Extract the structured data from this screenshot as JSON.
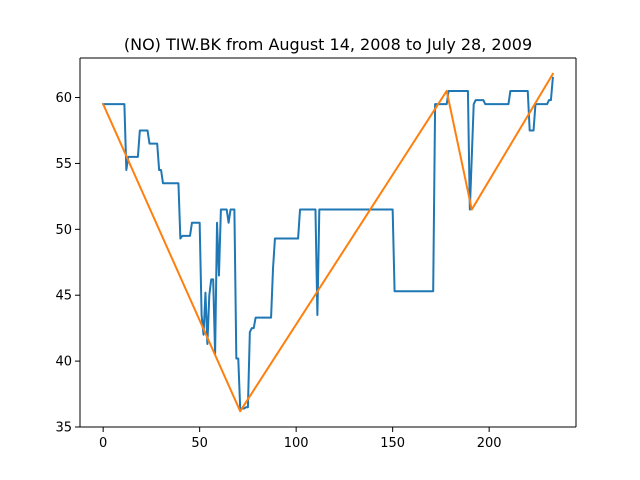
{
  "chart_data": {
    "type": "line",
    "title": "(NO) TIW.BK from August 14, 2008 to July 28, 2009",
    "xlabel": "",
    "ylabel": "",
    "xlim": [
      -12,
      245
    ],
    "ylim": [
      35,
      63
    ],
    "x_ticks": [
      0,
      50,
      100,
      150,
      200
    ],
    "y_ticks": [
      35,
      40,
      45,
      50,
      55,
      60
    ],
    "grid": false,
    "legend": "none",
    "series": [
      {
        "color": "#1f77b4",
        "points": [
          [
            0,
            59.5
          ],
          [
            11,
            59.5
          ],
          [
            12,
            54.5
          ],
          [
            13,
            55.5
          ],
          [
            18,
            55.5
          ],
          [
            19,
            57.5
          ],
          [
            23,
            57.5
          ],
          [
            24,
            56.5
          ],
          [
            28,
            56.5
          ],
          [
            29,
            54.5
          ],
          [
            30,
            54.5
          ],
          [
            31,
            53.5
          ],
          [
            39,
            53.5
          ],
          [
            40,
            49.3
          ],
          [
            41,
            49.5
          ],
          [
            45,
            49.5
          ],
          [
            46,
            50.5
          ],
          [
            50,
            50.5
          ],
          [
            51,
            43.5
          ],
          [
            52,
            42.0
          ],
          [
            53,
            45.2
          ],
          [
            54,
            41.3
          ],
          [
            55,
            45.0
          ],
          [
            56,
            46.2
          ],
          [
            57,
            46.2
          ],
          [
            58,
            40.5
          ],
          [
            59,
            50.5
          ],
          [
            60,
            46.5
          ],
          [
            61,
            51.5
          ],
          [
            64,
            51.5
          ],
          [
            65,
            50.5
          ],
          [
            66,
            51.5
          ],
          [
            68,
            51.5
          ],
          [
            69,
            40.2
          ],
          [
            70,
            40.2
          ],
          [
            71,
            36.4
          ],
          [
            73,
            36.4
          ],
          [
            74,
            36.5
          ],
          [
            75,
            36.5
          ],
          [
            76,
            42.2
          ],
          [
            77,
            42.5
          ],
          [
            78,
            42.5
          ],
          [
            79,
            43.3
          ],
          [
            87,
            43.3
          ],
          [
            88,
            47.0
          ],
          [
            89,
            49.3
          ],
          [
            101,
            49.3
          ],
          [
            102,
            51.5
          ],
          [
            110,
            51.5
          ],
          [
            111,
            43.5
          ],
          [
            112,
            51.5
          ],
          [
            150,
            51.5
          ],
          [
            151,
            45.3
          ],
          [
            171,
            45.3
          ],
          [
            172,
            59.5
          ],
          [
            178,
            59.5
          ],
          [
            179,
            60.5
          ],
          [
            189,
            60.5
          ],
          [
            190,
            51.5
          ],
          [
            192,
            59.5
          ],
          [
            193,
            59.8
          ],
          [
            197,
            59.8
          ],
          [
            198,
            59.5
          ],
          [
            210,
            59.5
          ],
          [
            211,
            60.5
          ],
          [
            220,
            60.5
          ],
          [
            221,
            57.5
          ],
          [
            223,
            57.5
          ],
          [
            224,
            59.5
          ],
          [
            230,
            59.5
          ],
          [
            231,
            59.8
          ],
          [
            232,
            59.8
          ],
          [
            233,
            61.5
          ]
        ]
      },
      {
        "color": "#ff7f0e",
        "points": [
          [
            0,
            59.5
          ],
          [
            71,
            36.2
          ],
          [
            178,
            60.5
          ],
          [
            191,
            51.5
          ],
          [
            233,
            61.8
          ]
        ]
      }
    ]
  }
}
